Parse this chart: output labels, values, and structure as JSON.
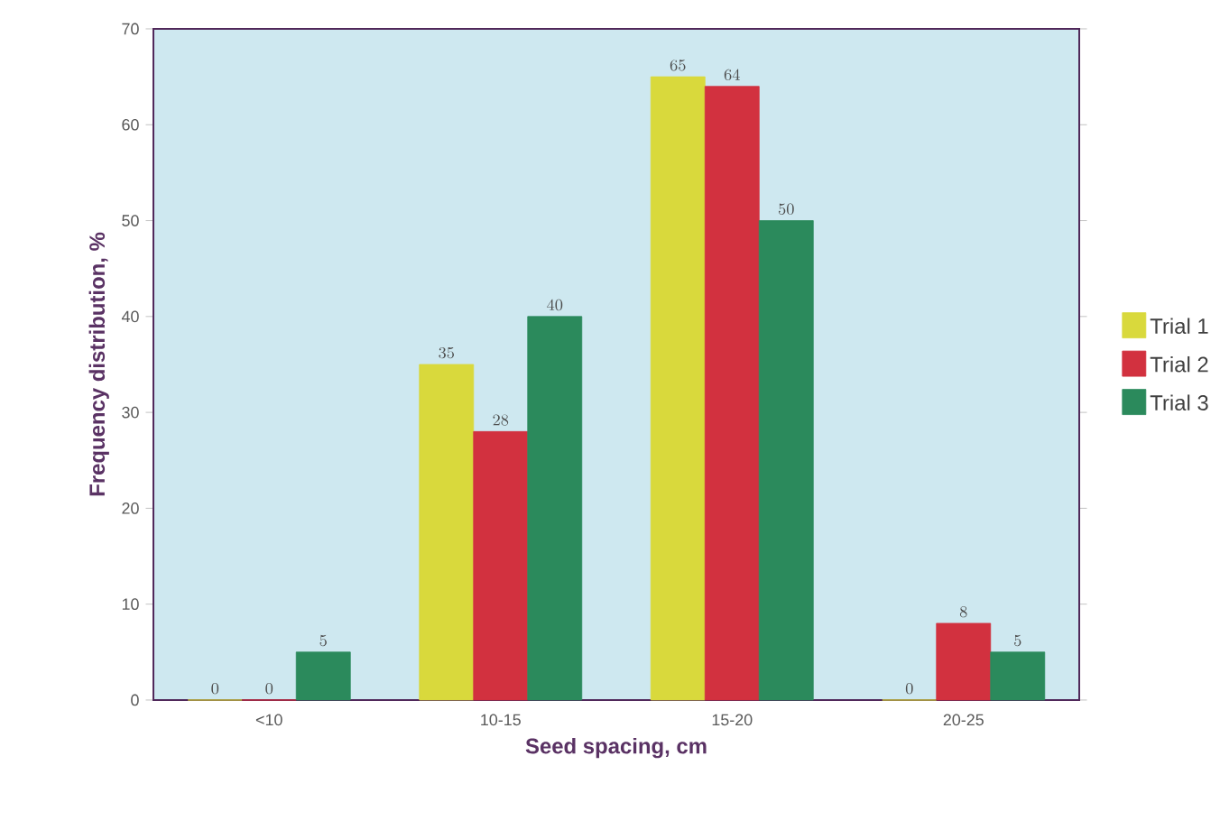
{
  "chart_data": {
    "type": "bar",
    "xlabel": "Seed spacing, cm",
    "ylabel": "Frequency distribution, %",
    "categories": [
      "<10",
      "10-15",
      "15-20",
      "20-25"
    ],
    "series": [
      {
        "name": "Trial 1",
        "color": "#d9d93c",
        "values": [
          0,
          35,
          65,
          0
        ]
      },
      {
        "name": "Trial 2",
        "color": "#d2313f",
        "values": [
          0,
          28,
          64,
          8
        ]
      },
      {
        "name": "Trial 3",
        "color": "#2b8a5c",
        "values": [
          5,
          40,
          50,
          5
        ]
      }
    ],
    "ylim": [
      0,
      70
    ],
    "yticks": [
      0,
      10,
      20,
      30,
      40,
      50,
      60,
      70
    ],
    "data_labels": true,
    "legend": "right",
    "grid": false
  }
}
